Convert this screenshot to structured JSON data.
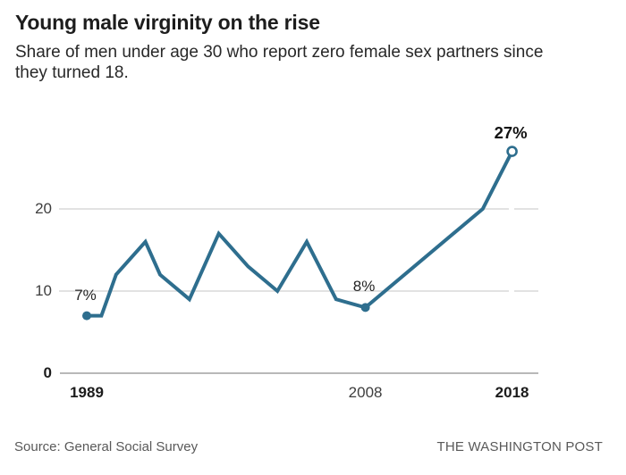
{
  "header": {
    "title": "Young male virginity on the rise",
    "subtitle_line1": "Share of men under age 30 who report zero female sex partners since",
    "subtitle_line2": "they turned 18."
  },
  "chart_data": {
    "type": "line",
    "title": "Young male virginity on the rise",
    "subtitle": "Share of men under age 30 who report zero female sex partners since they turned 18.",
    "unit": "percent",
    "xlim": [
      1989,
      2018
    ],
    "ylim": [
      0,
      28
    ],
    "grid": "horizontal",
    "legend": "none",
    "series": [
      {
        "name": "Share of men under age 30 reporting zero female sex partners since turning 18",
        "points": [
          [
            1989,
            7
          ],
          [
            1990,
            7
          ],
          [
            1991,
            12
          ],
          [
            1993,
            16
          ],
          [
            1994,
            12
          ],
          [
            1996,
            9
          ],
          [
            1998,
            17
          ],
          [
            2000,
            13
          ],
          [
            2002,
            10
          ],
          [
            2004,
            16
          ],
          [
            2006,
            9
          ],
          [
            2008,
            8
          ],
          [
            2016,
            20
          ],
          [
            2018,
            27
          ]
        ]
      }
    ],
    "y_ticks": [
      {
        "value": 0,
        "label": "0",
        "bold": true
      },
      {
        "value": 10,
        "label": "10",
        "bold": false
      },
      {
        "value": 20,
        "label": "20",
        "bold": false
      }
    ],
    "x_ticks": [
      {
        "year": 1989,
        "label": "1989",
        "bold": true
      },
      {
        "year": 2008,
        "label": "2008",
        "bold": false
      },
      {
        "year": 2018,
        "label": "2018",
        "bold": true
      }
    ],
    "annotations": [
      {
        "year": 1989,
        "value": 7,
        "label": "7%",
        "bold": false,
        "marker": "filled"
      },
      {
        "year": 2008,
        "value": 8,
        "label": "8%",
        "bold": false,
        "marker": "filled"
      },
      {
        "year": 2018,
        "value": 27,
        "label": "27%",
        "bold": true,
        "marker": "open"
      }
    ],
    "colors": {
      "line": "#2e6e8e",
      "grid": "#d9d9d9",
      "axis": "#a0a0a0",
      "text_dark": "#1c1c1c",
      "text_gray": "#3e3e3e"
    }
  },
  "footer": {
    "source": "Source: General Social Survey",
    "credit": "THE WASHINGTON POST"
  }
}
